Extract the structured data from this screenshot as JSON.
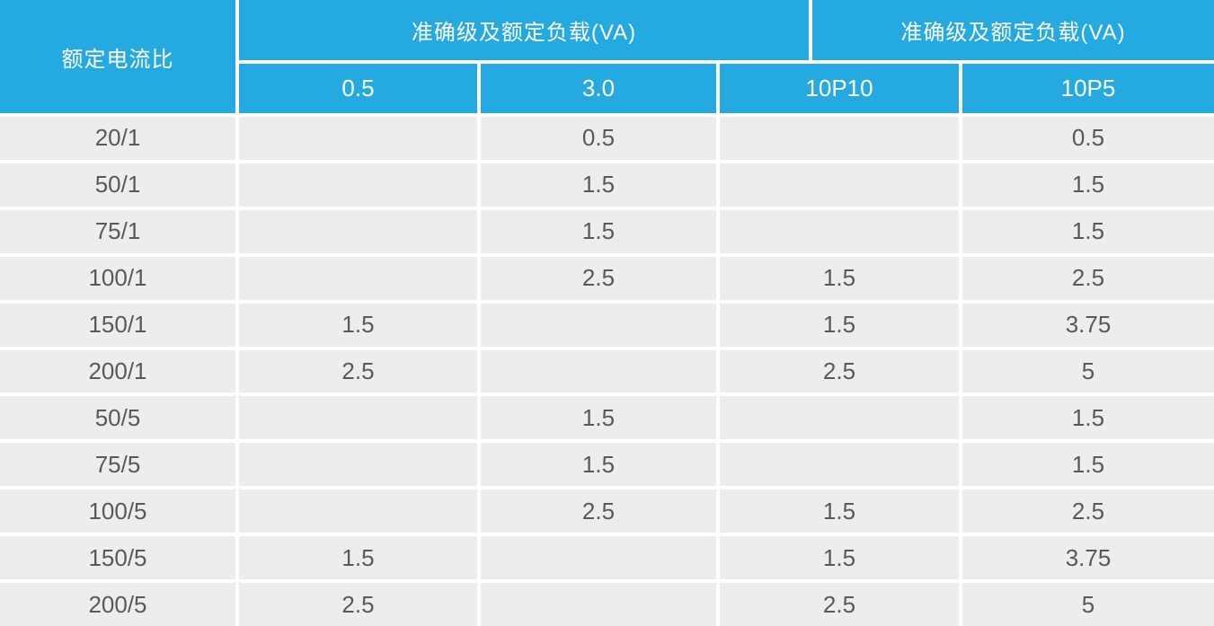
{
  "colors": {
    "header_blue": "#24aae1",
    "row_gray": "#ededee",
    "data_text": "#58595b",
    "divider_white": "#ffffff"
  },
  "chart_data": {
    "type": "table",
    "title": "",
    "ratio_header": "额定电流比",
    "column_groups": [
      {
        "label": "准确级及额定负载(VA)",
        "spans": [
          "0.5",
          "3.0"
        ]
      },
      {
        "label": "准确级及额定负载(VA)",
        "spans": [
          "10P10",
          "10P5"
        ]
      }
    ],
    "sub_headers": [
      "0.5",
      "3.0",
      "10P10",
      "10P5"
    ],
    "rows": [
      [
        "20/1",
        "",
        "0.5",
        "",
        "0.5"
      ],
      [
        "50/1",
        "",
        "1.5",
        "",
        "1.5"
      ],
      [
        "75/1",
        "",
        "1.5",
        "",
        "1.5"
      ],
      [
        "100/1",
        "",
        "2.5",
        "1.5",
        "2.5"
      ],
      [
        "150/1",
        "1.5",
        "",
        "1.5",
        "3.75"
      ],
      [
        "200/1",
        "2.5",
        "",
        "2.5",
        "5"
      ],
      [
        "50/5",
        "",
        "1.5",
        "",
        "1.5"
      ],
      [
        "75/5",
        "",
        "1.5",
        "",
        "1.5"
      ],
      [
        "100/5",
        "",
        "2.5",
        "1.5",
        "2.5"
      ],
      [
        "150/5",
        "1.5",
        "",
        "1.5",
        "3.75"
      ],
      [
        "200/5",
        "2.5",
        "",
        "2.5",
        "5"
      ]
    ]
  }
}
